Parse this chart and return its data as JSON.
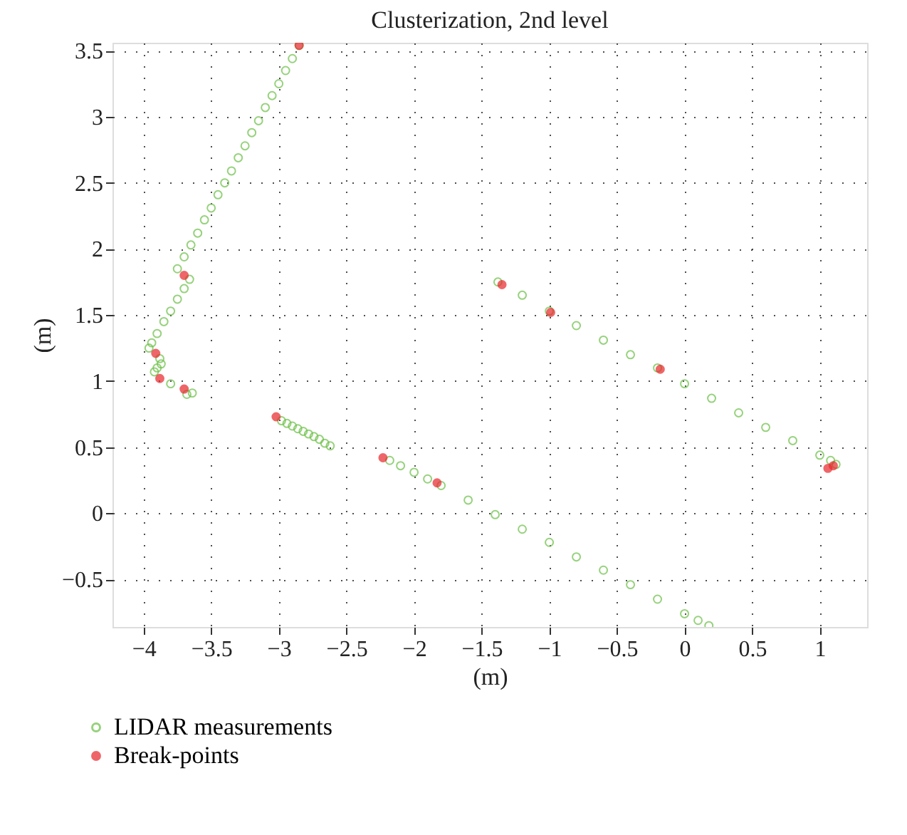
{
  "chart_data": {
    "type": "scatter",
    "title": "Clusterization, 2nd level",
    "xlabel": "(m)",
    "ylabel": "(m)",
    "xlim": [
      -4.23,
      1.35
    ],
    "ylim": [
      -0.86,
      3.56
    ],
    "xticks": [
      -4,
      -3.5,
      -3,
      -2.5,
      -2,
      -1.5,
      -1,
      -0.5,
      0,
      0.5,
      1
    ],
    "yticks": [
      -0.5,
      0,
      0.5,
      1,
      1.5,
      2,
      2.5,
      3,
      3.5
    ],
    "grid": true,
    "legend": "bottom left",
    "marker": "circle",
    "series": [
      {
        "name": "LIDAR measurements",
        "color": "#6abf45",
        "x": [
          -2.85,
          -2.9,
          -2.95,
          -3.0,
          -3.05,
          -3.1,
          -3.15,
          -3.2,
          -3.25,
          -3.3,
          -3.35,
          -3.4,
          -3.45,
          -3.5,
          -3.55,
          -3.6,
          -3.65,
          -3.7,
          -3.75,
          -3.66,
          -3.7,
          -3.75,
          -3.8,
          -3.85,
          -3.9,
          -3.94,
          -3.96,
          -3.88,
          -3.87,
          -3.9,
          -3.92,
          -3.8,
          -3.68,
          -3.64,
          -2.98,
          -2.94,
          -2.9,
          -2.86,
          -2.82,
          -2.78,
          -2.74,
          -2.7,
          -2.66,
          -2.62,
          -2.18,
          -2.1,
          -2.0,
          -1.9,
          -1.8,
          -1.6,
          -1.4,
          -1.2,
          -1.0,
          -0.8,
          -0.6,
          -0.4,
          -0.2,
          0.0,
          0.1,
          0.18,
          -1.38,
          -1.2,
          -1.0,
          -0.8,
          -0.6,
          -0.4,
          -0.2,
          0.0,
          0.2,
          0.4,
          0.6,
          0.8,
          1.0,
          1.08,
          1.12
        ],
        "values": [
          3.54,
          3.44,
          3.35,
          3.25,
          3.16,
          3.07,
          2.97,
          2.88,
          2.78,
          2.69,
          2.59,
          2.5,
          2.41,
          2.31,
          2.22,
          2.12,
          2.03,
          1.94,
          1.85,
          1.77,
          1.7,
          1.62,
          1.53,
          1.45,
          1.36,
          1.29,
          1.25,
          1.17,
          1.13,
          1.1,
          1.07,
          0.98,
          0.9,
          0.91,
          0.7,
          0.68,
          0.66,
          0.64,
          0.62,
          0.6,
          0.58,
          0.56,
          0.53,
          0.51,
          0.4,
          0.36,
          0.31,
          0.26,
          0.21,
          0.1,
          -0.01,
          -0.12,
          -0.22,
          -0.33,
          -0.43,
          -0.54,
          -0.65,
          -0.76,
          -0.81,
          -0.85,
          1.75,
          1.65,
          1.53,
          1.42,
          1.31,
          1.2,
          1.1,
          0.98,
          0.87,
          0.76,
          0.65,
          0.55,
          0.44,
          0.4,
          0.37
        ]
      },
      {
        "name": "Break-points",
        "color": "#e8262a",
        "x": [
          -2.85,
          -3.7,
          -3.91,
          -3.88,
          -3.7,
          -3.02,
          -2.23,
          -1.83,
          -1.35,
          -0.99,
          -0.18,
          1.06,
          1.1
        ],
        "values": [
          3.54,
          1.8,
          1.21,
          1.02,
          0.94,
          0.73,
          0.42,
          0.23,
          1.73,
          1.52,
          1.09,
          0.34,
          0.36
        ]
      }
    ]
  }
}
